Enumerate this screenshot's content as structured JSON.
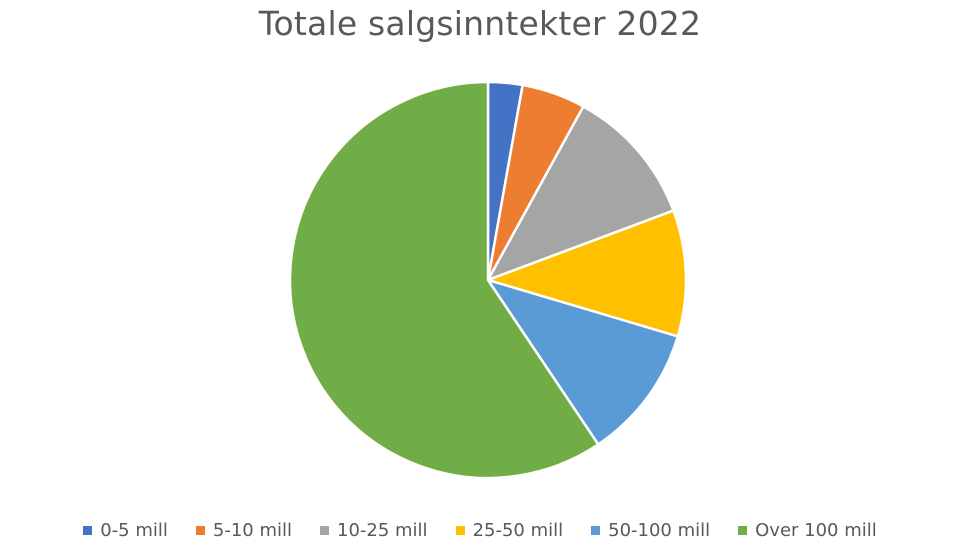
{
  "chart_data": {
    "type": "pie",
    "title": "Totale salgsinntekter 2022",
    "categories": [
      "0-5 mill",
      "5-10 mill",
      "10-25 mill",
      "25-50 mill",
      "50-100 mill",
      "Over 100 mill"
    ],
    "values": [
      2.8,
      5.2,
      11.3,
      10.3,
      11.0,
      59.4
    ],
    "colors": [
      "#4472C4",
      "#ED7D31",
      "#A5A5A5",
      "#FFC000",
      "#5B9BD5",
      "#70AD47"
    ],
    "legend": "bottom",
    "start_angle": "12 o'clock",
    "direction": "clockwise"
  }
}
